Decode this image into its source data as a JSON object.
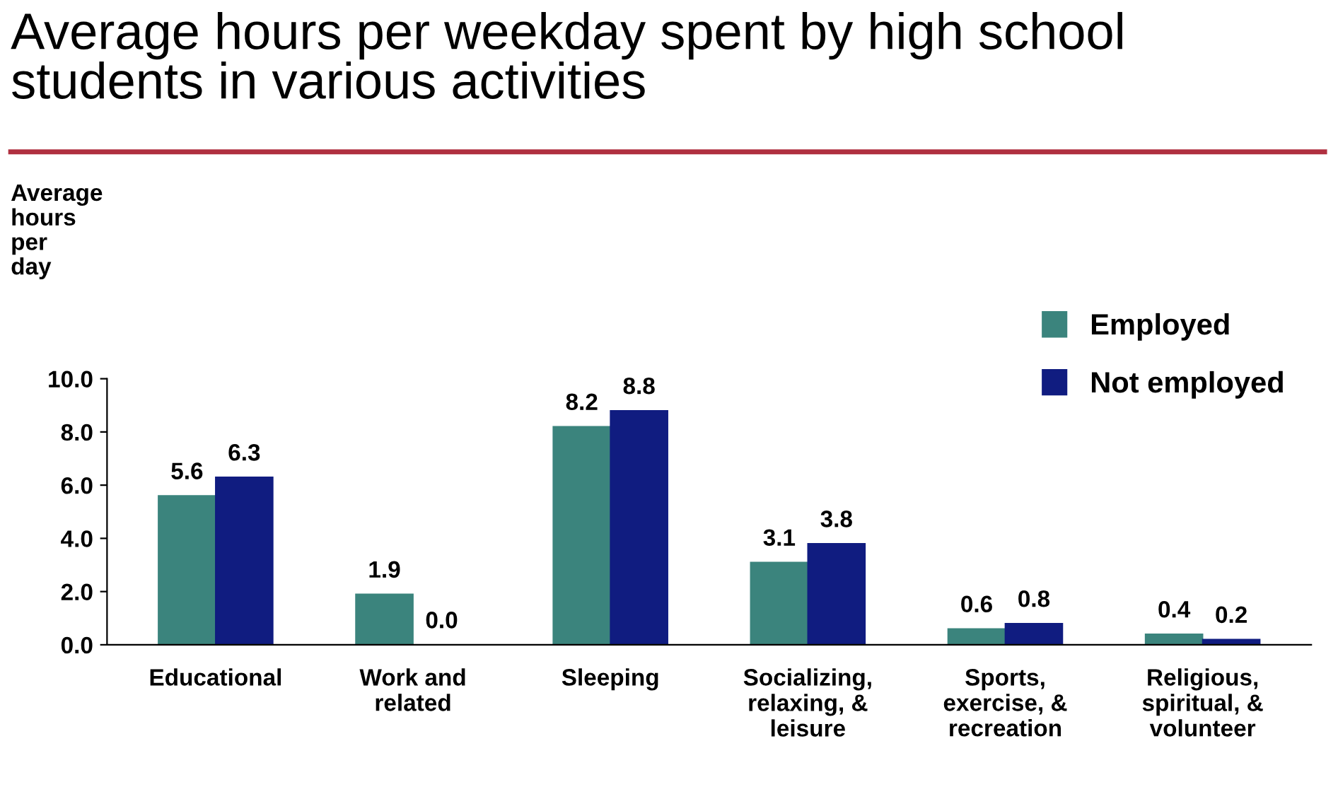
{
  "chart_data": {
    "type": "bar",
    "title": "Average hours per weekday spent by high school\nstudents in various activities",
    "ylabel": "Average\nhours\nper\nday",
    "categories": [
      "Educational",
      "Work and\nrelated",
      "Sleeping",
      "Socializing,\nrelaxing, &\nleisure",
      "Sports,\nexercise, &\nrecreation",
      "Religious,\nspiritual, &\nvolunteer"
    ],
    "series": [
      {
        "name": "Employed",
        "color": "#3b847d",
        "values": [
          5.6,
          1.9,
          8.2,
          3.1,
          0.6,
          0.4
        ],
        "value_labels": [
          "5.6",
          "1.9",
          "8.2",
          "3.1",
          "0.6",
          "0.4"
        ]
      },
      {
        "name": "Not employed",
        "color": "#101c80",
        "values": [
          6.3,
          0.0,
          8.8,
          3.8,
          0.8,
          0.2
        ],
        "value_labels": [
          "6.3",
          "0.0",
          "8.8",
          "3.8",
          "0.8",
          "0.2"
        ]
      }
    ],
    "ylim": [
      0,
      10
    ],
    "yticks": [
      {
        "value": 0,
        "label": "0.0"
      },
      {
        "value": 2,
        "label": "2.0"
      },
      {
        "value": 4,
        "label": "4.0"
      },
      {
        "value": 6,
        "label": "6.0"
      },
      {
        "value": 8,
        "label": "8.0"
      },
      {
        "value": 10,
        "label": "10.0"
      }
    ],
    "grid": false,
    "legend": "top right"
  }
}
